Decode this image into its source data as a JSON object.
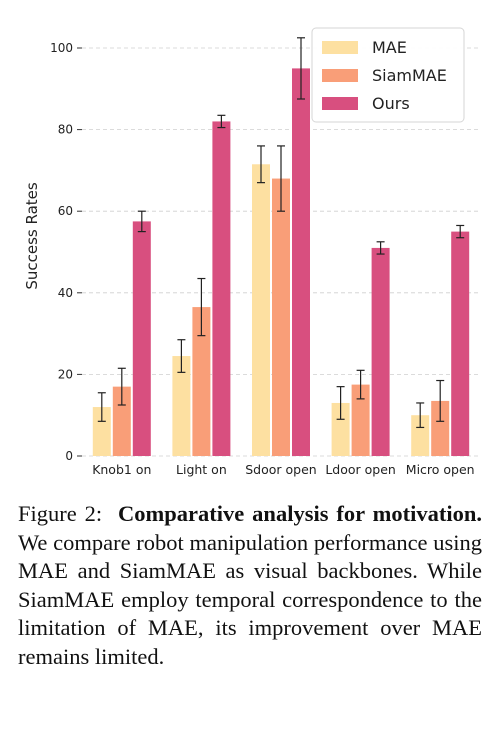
{
  "chart_data": {
    "type": "bar",
    "categories": [
      "Knob1 on",
      "Light on",
      "Sdoor open",
      "Ldoor open",
      "Micro open"
    ],
    "ylabel": "Success Rates",
    "xlabel": "",
    "ylim": [
      0,
      105
    ],
    "yticks": [
      0,
      20,
      40,
      60,
      80,
      100
    ],
    "grid": "horizontal-dashed",
    "legend_position": "top-right",
    "series": [
      {
        "name": "MAE",
        "color": "#fde0a1",
        "values": [
          12,
          24.5,
          71.5,
          13,
          10
        ],
        "errors": [
          3.5,
          4,
          4.5,
          4,
          3
        ]
      },
      {
        "name": "SiamMAE",
        "color": "#f99e78",
        "values": [
          17,
          36.5,
          68,
          17.5,
          13.5
        ],
        "errors": [
          4.5,
          7,
          8,
          3.5,
          5
        ]
      },
      {
        "name": "Ours",
        "color": "#d84f7f",
        "values": [
          57.5,
          82,
          95,
          51,
          55
        ],
        "errors": [
          2.5,
          1.5,
          7.5,
          1.5,
          1.5
        ]
      }
    ]
  },
  "caption": {
    "figure_label": "Figure 2:",
    "bold_title": "Comparative analysis for motivation.",
    "body": "We compare robot manip­ulation performance using MAE and SiamMAE as visual backbones. While SiamMAE employ temporal correspon­dence to the limitation of MAE, its im­provement over MAE remains limited."
  }
}
